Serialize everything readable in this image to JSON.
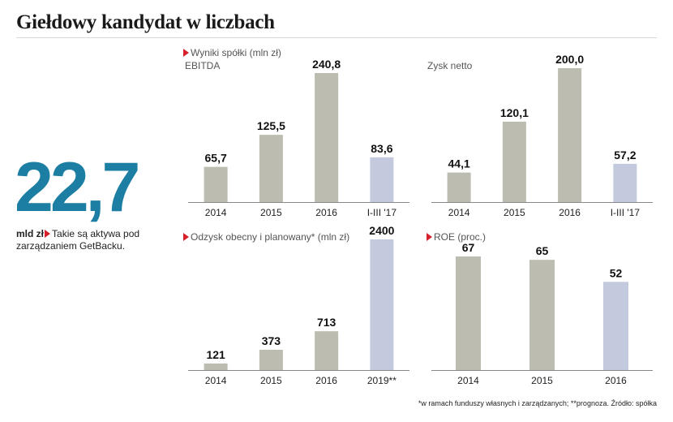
{
  "title": "Giełdowy kandydat w liczbach",
  "headline": {
    "value": "22,7",
    "unit": "mld zł",
    "caption": "Takie są aktywa pod zarządzaniem GetBacku."
  },
  "sections": {
    "results_label": "Wyniki spółki (mln zł)"
  },
  "footnote": "*w ramach funduszy własnych i zarządzanych; **prognoza. Źródło: spółka",
  "colors": {
    "bar": "#bdbcb1",
    "bar_highlight": "#c3cadd",
    "accent": "#1d7ea3",
    "marker": "#d6202a"
  },
  "chart_data": [
    {
      "type": "bar",
      "title": "EBITDA",
      "categories": [
        "2014",
        "2015",
        "2016",
        "I-III '17"
      ],
      "values": [
        65.7,
        125.5,
        240.8,
        83.6
      ],
      "labels": [
        "65,7",
        "125,5",
        "240,8",
        "83,6"
      ],
      "highlight": [
        false,
        false,
        false,
        true
      ],
      "ylim": [
        0,
        240.8
      ]
    },
    {
      "type": "bar",
      "title": "Zysk netto",
      "categories": [
        "2014",
        "2015",
        "2016",
        "I-III '17"
      ],
      "values": [
        44.1,
        120.1,
        200.0,
        57.2
      ],
      "labels": [
        "44,1",
        "120,1",
        "200,0",
        "57,2"
      ],
      "highlight": [
        false,
        false,
        false,
        true
      ],
      "ylim": [
        0,
        200.0
      ]
    },
    {
      "type": "bar",
      "title": "Odzysk obecny i planowany* (mln zł)",
      "categories": [
        "2014",
        "2015",
        "2016",
        "2019**"
      ],
      "values": [
        121,
        373,
        713,
        2400
      ],
      "labels": [
        "121",
        "373",
        "713",
        "2400"
      ],
      "highlight": [
        false,
        false,
        false,
        true
      ],
      "ylim": [
        0,
        2400
      ]
    },
    {
      "type": "bar",
      "title": "ROE (proc.)",
      "categories": [
        "2014",
        "2015",
        "2016"
      ],
      "values": [
        67,
        65,
        52
      ],
      "labels": [
        "67",
        "65",
        "52"
      ],
      "highlight": [
        false,
        false,
        true
      ],
      "ylim": [
        0,
        67
      ]
    }
  ]
}
